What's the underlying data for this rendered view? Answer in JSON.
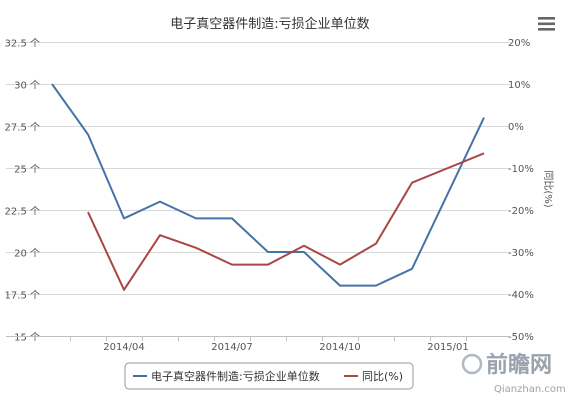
{
  "menu_icon": "hamburger-menu-icon",
  "watermark": {
    "brand": "前瞻网",
    "url": "Qianzhan.com"
  },
  "chart_data": {
    "type": "line",
    "title": "电子真空器件制造:亏损企业单位数",
    "x_tick_labels": [
      "2014/04",
      "2014/07",
      "2014/10",
      "2015/01"
    ],
    "x": [
      "2014-02",
      "2014-03",
      "2014-04",
      "2014-05",
      "2014-06",
      "2014-07",
      "2014-08",
      "2014-09",
      "2014-10",
      "2014-11",
      "2014-12",
      "2015-01",
      "2015-02"
    ],
    "left_axis": {
      "ylim": [
        15,
        32.5
      ],
      "ticks": [
        15,
        17.5,
        20,
        22.5,
        25,
        27.5,
        30,
        32.5
      ],
      "tick_labels": [
        "15 个",
        "17.5 个",
        "20 个",
        "22.5 个",
        "25 个",
        "27.5 个",
        "30 个",
        "32.5 个"
      ]
    },
    "right_axis": {
      "label": "同比(%)",
      "ylim": [
        -50,
        20
      ],
      "ticks": [
        -50,
        -40,
        -30,
        -20,
        -10,
        0,
        10,
        20
      ],
      "tick_labels": [
        "-50%",
        "-40%",
        "-30%",
        "-20%",
        "-10%",
        "0%",
        "10%",
        "20%"
      ]
    },
    "series": [
      {
        "name": "电子真空器件制造:亏损企业单位数",
        "axis": "left",
        "color": "#4572a7",
        "values": [
          30,
          27,
          22,
          23,
          22,
          22,
          20,
          20,
          18,
          18,
          19,
          23.5,
          28
        ]
      },
      {
        "name": "同比(%)",
        "axis": "right",
        "color": "#aa4643",
        "values": [
          null,
          -20.5,
          -39,
          -26,
          -29,
          -33,
          -33,
          -28.5,
          -33,
          -28,
          -13.5,
          -10,
          -6.5
        ]
      }
    ],
    "grid": true,
    "legend_position": "bottom"
  }
}
